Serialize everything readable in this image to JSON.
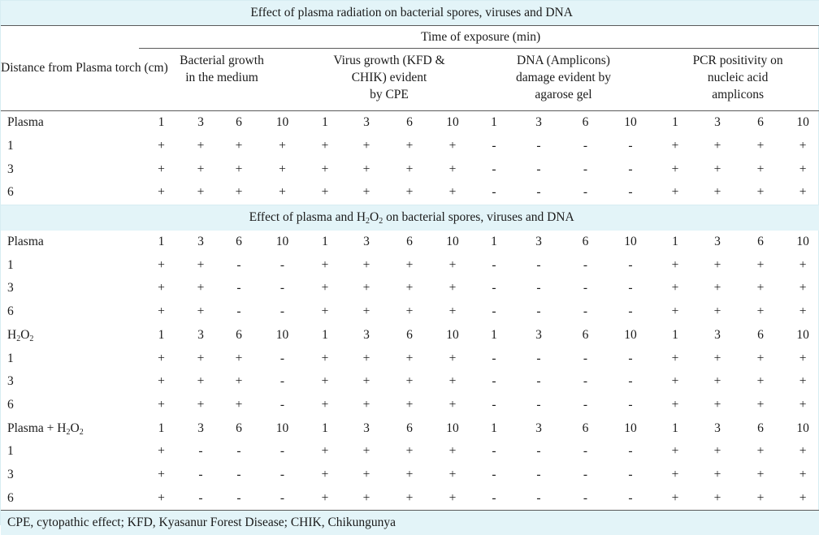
{
  "title": "Effect of plasma radiation on bacterial spores, viruses and DNA",
  "time_header": "Time of exposure (min)",
  "distance_header": [
    "Distance from",
    "Plasma torch (cm)"
  ],
  "groups": [
    [
      "Bacterial growth",
      "in the medium"
    ],
    [
      "Virus growth (KFD &",
      "CHIK) evident",
      "by CPE"
    ],
    [
      "DNA (Amplicons)",
      "damage evident by",
      "agarose gel"
    ],
    [
      "PCR positivity on",
      "nucleic acid",
      "amplicons"
    ]
  ],
  "times": [
    "1",
    "3",
    "6",
    "10"
  ],
  "section1": {
    "header_label": "Plasma",
    "rows": [
      {
        "label": "1",
        "values": [
          "+",
          "+",
          "+",
          "+",
          "+",
          "+",
          "+",
          "+",
          "-",
          "-",
          "-",
          "-",
          "+",
          "+",
          "+",
          "+"
        ]
      },
      {
        "label": "3",
        "values": [
          "+",
          "+",
          "+",
          "+",
          "+",
          "+",
          "+",
          "+",
          "-",
          "-",
          "-",
          "-",
          "+",
          "+",
          "+",
          "+"
        ]
      },
      {
        "label": "6",
        "values": [
          "+",
          "+",
          "+",
          "+",
          "+",
          "+",
          "+",
          "+",
          "-",
          "-",
          "-",
          "-",
          "+",
          "+",
          "+",
          "+"
        ]
      }
    ]
  },
  "section2_title": {
    "pre": "Effect of plasma and H",
    "sub1": "2",
    "mid": "O",
    "sub2": "2",
    "post": " on bacterial spores, viruses and DNA"
  },
  "section2_blocks": [
    {
      "header_label": "Plasma",
      "rows": [
        {
          "label": "1",
          "values": [
            "+",
            "+",
            "-",
            "-",
            "+",
            "+",
            "+",
            "+",
            "-",
            "-",
            "-",
            "-",
            "+",
            "+",
            "+",
            "+"
          ]
        },
        {
          "label": "3",
          "values": [
            "+",
            "+",
            "-",
            "-",
            "+",
            "+",
            "+",
            "+",
            "-",
            "-",
            "-",
            "-",
            "+",
            "+",
            "+",
            "+"
          ]
        },
        {
          "label": "6",
          "values": [
            "+",
            "+",
            "-",
            "-",
            "+",
            "+",
            "+",
            "+",
            "-",
            "-",
            "-",
            "-",
            "+",
            "+",
            "+",
            "+"
          ]
        }
      ]
    },
    {
      "header_label": "H2O2",
      "rows": [
        {
          "label": "1",
          "values": [
            "+",
            "+",
            "+",
            "-",
            "+",
            "+",
            "+",
            "+",
            "-",
            "-",
            "-",
            "-",
            "+",
            "+",
            "+",
            "+"
          ]
        },
        {
          "label": "3",
          "values": [
            "+",
            "+",
            "+",
            "-",
            "+",
            "+",
            "+",
            "+",
            "-",
            "-",
            "-",
            "-",
            "+",
            "+",
            "+",
            "+"
          ]
        },
        {
          "label": "6",
          "values": [
            "+",
            "+",
            "+",
            "-",
            "+",
            "+",
            "+",
            "+",
            "-",
            "-",
            "-",
            "-",
            "+",
            "+",
            "+",
            "+"
          ]
        }
      ]
    },
    {
      "header_label": "Plasma + H2O2",
      "rows": [
        {
          "label": "1",
          "values": [
            "+",
            "-",
            "-",
            "-",
            "+",
            "+",
            "+",
            "+",
            "-",
            "-",
            "-",
            "-",
            "+",
            "+",
            "+",
            "+"
          ]
        },
        {
          "label": "3",
          "values": [
            "+",
            "-",
            "-",
            "-",
            "+",
            "+",
            "+",
            "+",
            "-",
            "-",
            "-",
            "-",
            "+",
            "+",
            "+",
            "+"
          ]
        },
        {
          "label": "6",
          "values": [
            "+",
            "-",
            "-",
            "-",
            "+",
            "+",
            "+",
            "+",
            "-",
            "-",
            "-",
            "-",
            "+",
            "+",
            "+",
            "+"
          ]
        }
      ]
    }
  ],
  "footnote": "CPE, cytopathic effect; KFD, Kyasanur Forest Disease; CHIK, Chikungunya"
}
